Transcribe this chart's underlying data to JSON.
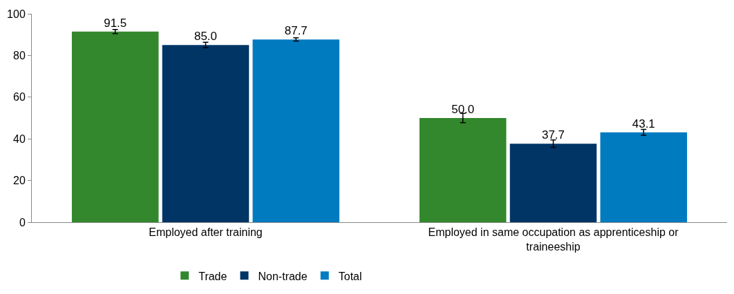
{
  "chart_data": {
    "type": "bar",
    "categories": [
      "Employed after training",
      "Employed in same occupation as apprenticeship or traineeship"
    ],
    "series": [
      {
        "name": "Trade",
        "color": "#33882e",
        "values": [
          91.5,
          50.0
        ],
        "value_labels": [
          "91.5",
          "50.0"
        ],
        "errors": [
          1.0,
          2.2
        ]
      },
      {
        "name": "Non-trade",
        "color": "#003566",
        "values": [
          85.0,
          37.7
        ],
        "value_labels": [
          "85.0",
          "37.7"
        ],
        "errors": [
          1.3,
          1.8
        ]
      },
      {
        "name": "Total",
        "color": "#007bc0",
        "values": [
          87.7,
          43.1
        ],
        "value_labels": [
          "87.7",
          "43.1"
        ],
        "errors": [
          0.8,
          1.4
        ]
      }
    ],
    "ylim": [
      0,
      100
    ],
    "yticks": [
      0,
      20,
      40,
      60,
      80,
      100
    ],
    "legend": "bottom"
  }
}
